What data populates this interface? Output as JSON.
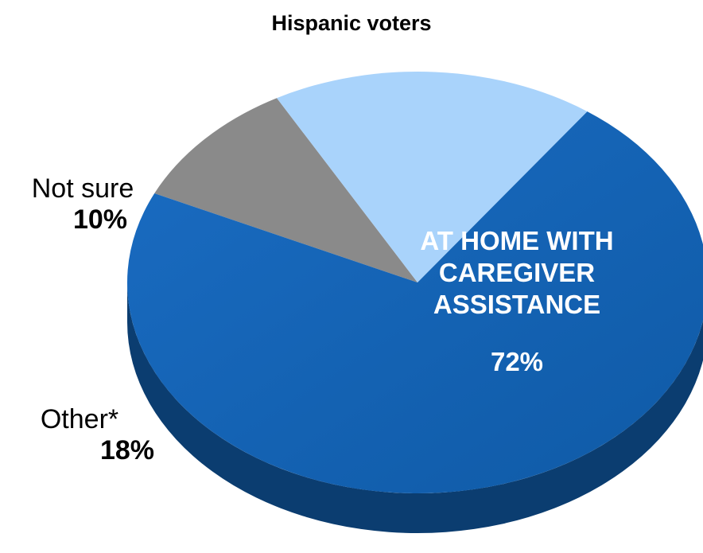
{
  "chart_data": {
    "type": "pie",
    "title": "Hispanic voters",
    "slices": [
      {
        "label": "AT HOME WITH CAREGIVER ASSISTANCE",
        "value": 72,
        "value_label": "72%",
        "color": "#1565b8",
        "side_color": "#0b3d70"
      },
      {
        "label": "Not sure",
        "value": 10,
        "value_label": "10%",
        "color": "#8a8a8a",
        "side_color": "#5e5e5e"
      },
      {
        "label": "Other*",
        "value": 18,
        "value_label": "18%",
        "color": "#a9d3fb",
        "side_color": "#6f8fab"
      }
    ]
  }
}
